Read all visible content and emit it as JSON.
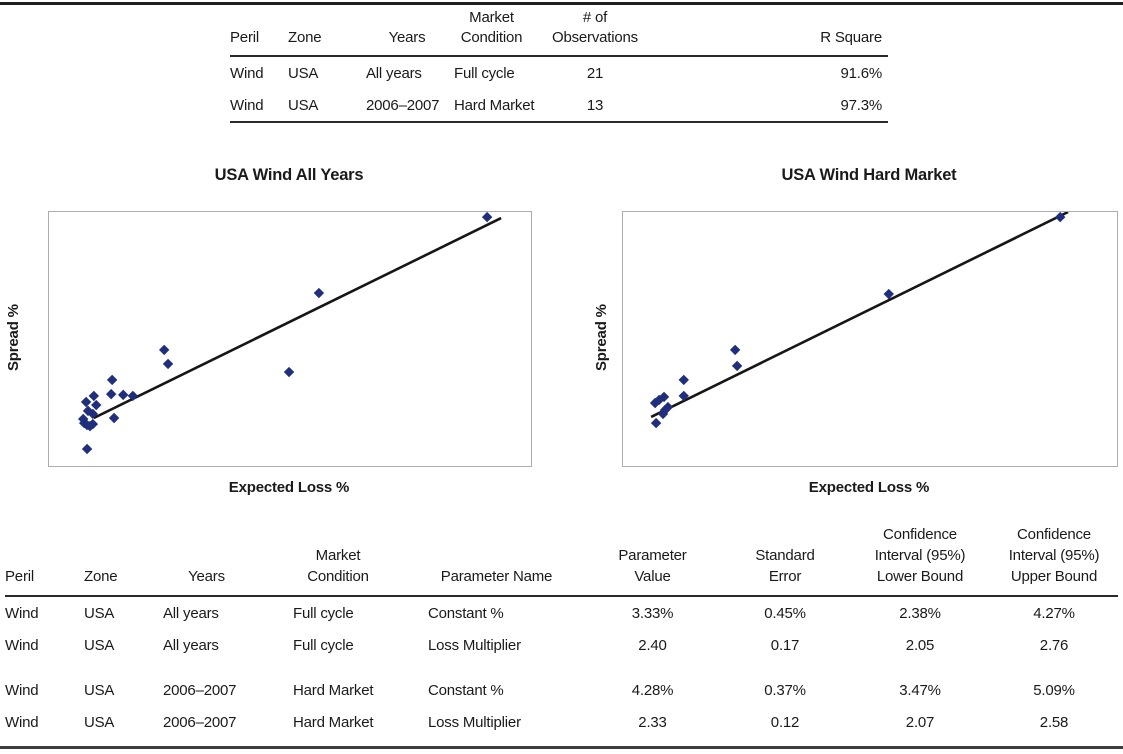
{
  "top_table": {
    "headers": [
      [
        "Peril"
      ],
      [
        "Zone"
      ],
      [
        "Years"
      ],
      [
        "Market",
        "Condition"
      ],
      [
        "# of",
        "Observations"
      ],
      [
        "R Square"
      ]
    ],
    "rows": [
      [
        "Wind",
        "USA",
        "All years",
        "Full cycle",
        "21",
        "91.6%"
      ],
      [
        "Wind",
        "USA",
        "2006–2007",
        "Hard Market",
        "13",
        "97.3%"
      ]
    ]
  },
  "charts": [
    {
      "title": "USA Wind All Years",
      "xlabel": "Expected Loss %",
      "ylabel": "Spread %"
    },
    {
      "title": "USA Wind Hard Market",
      "xlabel": "Expected Loss %",
      "ylabel": "Spread %"
    }
  ],
  "chart_data": [
    {
      "type": "scatter",
      "title": "USA Wind All Years",
      "xlabel": "Expected Loss %",
      "ylabel": "Spread %",
      "axes": "no numeric tick labels shown; values given as percent of plot area (x from left, y from bottom)",
      "n_observations": 21,
      "r_square": "91.6%",
      "marker": "diamond",
      "points_pct": [
        [
          90.9,
          98.0
        ],
        [
          56.0,
          68.1
        ],
        [
          23.9,
          45.7
        ],
        [
          24.7,
          40.2
        ],
        [
          49.8,
          37.0
        ],
        [
          13.1,
          33.9
        ],
        [
          12.9,
          28.3
        ],
        [
          15.4,
          28.0
        ],
        [
          17.4,
          27.6
        ],
        [
          9.3,
          27.6
        ],
        [
          7.7,
          25.2
        ],
        [
          9.8,
          24.0
        ],
        [
          8.1,
          21.7
        ],
        [
          9.1,
          20.5
        ],
        [
          13.5,
          18.9
        ],
        [
          7.1,
          18.5
        ],
        [
          7.3,
          16.9
        ],
        [
          7.9,
          16.1
        ],
        [
          8.5,
          15.7
        ],
        [
          9.1,
          16.5
        ],
        [
          7.9,
          6.7
        ]
      ],
      "trendline_pct": [
        [
          9.3,
          18.9
        ],
        [
          93.8,
          97.6
        ]
      ],
      "legend": "none",
      "grid": "off"
    },
    {
      "type": "scatter",
      "title": "USA Wind Hard Market",
      "xlabel": "Expected Loss %",
      "ylabel": "Spread %",
      "axes": "no numeric tick labels shown; values given as percent of plot area (x from left, y from bottom)",
      "n_observations": 13,
      "r_square": "97.3%",
      "marker": "diamond",
      "points_pct": [
        [
          88.5,
          98.0
        ],
        [
          53.8,
          67.7
        ],
        [
          22.7,
          45.7
        ],
        [
          23.1,
          39.4
        ],
        [
          12.3,
          33.9
        ],
        [
          12.3,
          27.6
        ],
        [
          8.3,
          27.2
        ],
        [
          7.3,
          26.0
        ],
        [
          6.5,
          24.8
        ],
        [
          9.1,
          23.2
        ],
        [
          8.5,
          22.0
        ],
        [
          8.1,
          20.5
        ],
        [
          6.7,
          16.9
        ]
      ],
      "trendline_pct": [
        [
          5.7,
          19.3
        ],
        [
          90.1,
          100.0
        ]
      ],
      "legend": "none",
      "grid": "off"
    }
  ],
  "bottom_table": {
    "headers": [
      [
        "Peril"
      ],
      [
        "Zone"
      ],
      [
        "Years"
      ],
      [
        "Market",
        "Condition"
      ],
      [
        "Parameter Name"
      ],
      [
        "Parameter",
        "Value"
      ],
      [
        "Standard",
        "Error"
      ],
      [
        "Confidence",
        "Interval (95%)",
        "Lower Bound"
      ],
      [
        "Confidence",
        "Interval (95%)",
        "Upper Bound"
      ]
    ],
    "rows": [
      [
        "Wind",
        "USA",
        "All years",
        "Full cycle",
        "Constant %",
        "3.33%",
        "0.45%",
        "2.38%",
        "4.27%"
      ],
      [
        "Wind",
        "USA",
        "All years",
        "Full cycle",
        "Loss Multiplier",
        "2.40",
        "0.17",
        "2.05",
        "2.76"
      ],
      [
        "Wind",
        "USA",
        "2006–2007",
        "Hard Market",
        "Constant %",
        "4.28%",
        "0.37%",
        "3.47%",
        "5.09%"
      ],
      [
        "Wind",
        "USA",
        "2006–2007",
        "Hard Market",
        "Loss Multiplier",
        "2.33",
        "0.12",
        "2.07",
        "2.58"
      ]
    ]
  },
  "colors": {
    "marker": "#1F2F7D",
    "trend": "#161616",
    "plot_border": "#ADADAD",
    "rule": "#2A2A2A"
  }
}
